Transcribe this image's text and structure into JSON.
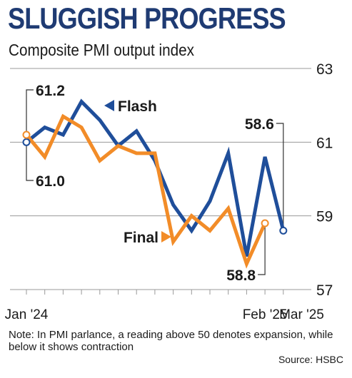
{
  "header": {
    "title": "SLUGGISH PROGRESS",
    "subtitle": "Composite PMI output index"
  },
  "footer": {
    "note": "Note: In PMI parlance, a reading above 50 denotes expansion, while below it shows contraction",
    "source": "Source: HSBC"
  },
  "colors": {
    "flash": "#1f4e9a",
    "final": "#f28c28",
    "grid": "#9a9a9a",
    "title": "#1f3b73"
  },
  "chart_data": {
    "type": "line",
    "title": "SLUGGISH PROGRESS",
    "subtitle": "Composite PMI output index",
    "xlabel": "",
    "ylabel": "",
    "ylim": [
      57,
      63
    ],
    "yticks": [
      57,
      59,
      61,
      63
    ],
    "y_axis_side": "right",
    "grid": true,
    "x_tick_labels": [
      {
        "index": 0,
        "label": "Jan '24"
      },
      {
        "index": 13,
        "label": "Feb '25"
      },
      {
        "index": 15,
        "label": "Mar '25"
      }
    ],
    "legend": "inline labels",
    "series": [
      {
        "name": "Flash",
        "values": [
          61.0,
          61.4,
          61.2,
          62.1,
          61.6,
          60.9,
          61.3,
          60.5,
          59.3,
          58.6,
          59.4,
          60.7,
          57.9,
          60.6,
          58.6
        ]
      },
      {
        "name": "Final",
        "values": [
          61.2,
          60.6,
          61.7,
          61.4,
          60.5,
          60.9,
          60.7,
          60.7,
          58.3,
          59.0,
          58.6,
          59.2,
          57.7,
          58.8
        ]
      }
    ],
    "annotations": [
      "61.2",
      "61.0",
      "58.6",
      "58.8"
    ]
  }
}
